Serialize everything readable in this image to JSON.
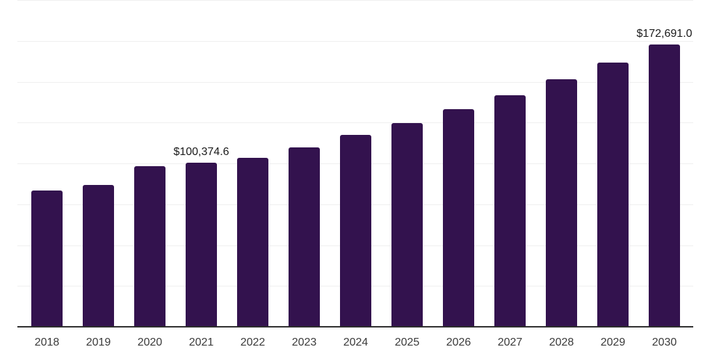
{
  "chart_data": {
    "type": "bar",
    "title": "",
    "xlabel": "",
    "ylabel": "",
    "categories": [
      "2018",
      "2019",
      "2020",
      "2021",
      "2022",
      "2023",
      "2024",
      "2025",
      "2026",
      "2027",
      "2028",
      "2029",
      "2030"
    ],
    "values": [
      83300,
      86700,
      98200,
      100374.6,
      103300,
      109700,
      117400,
      124600,
      133100,
      141600,
      151400,
      161700,
      172691.0
    ],
    "data_labels": [
      "",
      "",
      "",
      "$100,374.6",
      "",
      "",
      "",
      "",
      "",
      "",
      "",
      "",
      "$172,691.0"
    ],
    "ylim": [
      0,
      200000
    ],
    "gridline_interval": 25000,
    "grid": true,
    "legend": false,
    "y_axis_labels_visible": false,
    "colors": {
      "bar": "#33124E",
      "axis_line": "#2D2D2D",
      "gridline": "#EFEFEF",
      "tick_label": "#3A3A3A",
      "data_label": "#1A1A1A",
      "background": "#FFFFFF"
    }
  }
}
